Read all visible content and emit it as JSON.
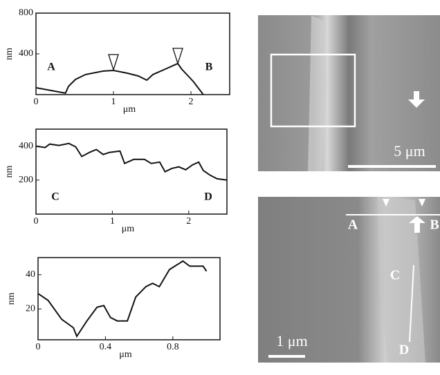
{
  "chart_data": [
    {
      "type": "line",
      "x_label": "μm",
      "y_label": "nm",
      "annotations": [
        "A",
        "B"
      ],
      "xlim": [
        0,
        2.5
      ],
      "ylim": [
        0,
        800
      ],
      "xticks": [
        0,
        1,
        2
      ],
      "yticks": [
        400,
        800
      ],
      "color": "#111111",
      "x": [
        0,
        0.38,
        0.42,
        0.51,
        0.64,
        0.87,
        1.0,
        1.18,
        1.32,
        1.43,
        1.51,
        1.67,
        1.83,
        1.88,
        2.03,
        2.16
      ],
      "values": [
        68,
        14,
        81,
        149,
        197,
        231,
        237,
        210,
        183,
        142,
        197,
        251,
        305,
        251,
        129,
        0
      ]
    },
    {
      "type": "line",
      "x_label": "μm",
      "y_label": "nm",
      "annotations": [
        "C",
        "D"
      ],
      "xlim": [
        0,
        2.5
      ],
      "ylim": [
        0,
        500
      ],
      "xticks": [
        0,
        1,
        2
      ],
      "yticks": [
        200,
        400
      ],
      "color": "#111111",
      "x": [
        0,
        0.12,
        0.18,
        0.3,
        0.43,
        0.52,
        0.6,
        0.7,
        0.79,
        0.88,
        0.96,
        1.1,
        1.16,
        1.28,
        1.42,
        1.51,
        1.62,
        1.69,
        1.78,
        1.87,
        1.96,
        2.05,
        2.13,
        2.19,
        2.28,
        2.37,
        2.5
      ],
      "values": [
        400,
        392,
        412,
        404,
        416,
        396,
        339,
        363,
        380,
        351,
        363,
        371,
        298,
        322,
        322,
        298,
        306,
        249,
        269,
        278,
        261,
        290,
        306,
        257,
        229,
        208,
        200
      ]
    },
    {
      "type": "line",
      "x_label": "μm",
      "y_label": "nm",
      "annotations": [],
      "xlim": [
        0,
        1.08
      ],
      "ylim": [
        2,
        50
      ],
      "xticks": [
        0,
        0.4,
        0.8
      ],
      "yticks": [
        20,
        40
      ],
      "color": "#111111",
      "x": [
        0,
        0.06,
        0.14,
        0.21,
        0.23,
        0.29,
        0.35,
        0.39,
        0.43,
        0.47,
        0.53,
        0.58,
        0.64,
        0.68,
        0.72,
        0.78,
        0.86,
        0.9,
        0.98,
        1.0
      ],
      "values": [
        29,
        25,
        14,
        9,
        4,
        13,
        21,
        22,
        15,
        13,
        13,
        27,
        33,
        35,
        33,
        43,
        48,
        45,
        45,
        42
      ]
    }
  ],
  "images": [
    {
      "scale_bar": "5 μm"
    },
    {
      "labels": [
        "A",
        "B",
        "C",
        "D"
      ],
      "scale_bar": "1 μm"
    }
  ]
}
